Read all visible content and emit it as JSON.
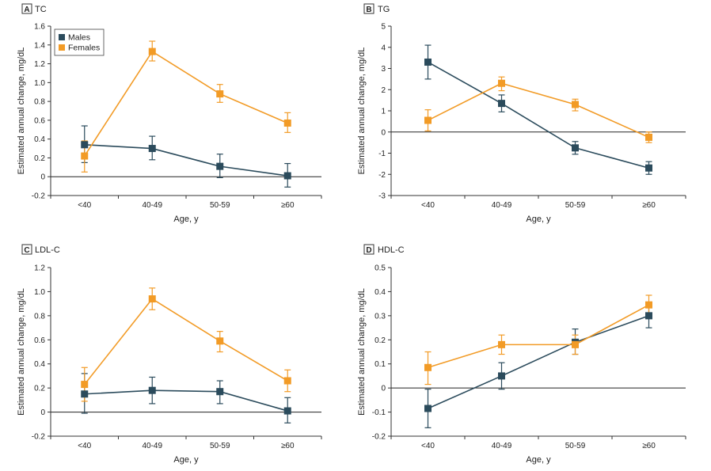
{
  "colors": {
    "males": "#2b4b5c",
    "females": "#f29b26",
    "axis": "#333333"
  },
  "legend": [
    {
      "name": "Males",
      "color": "#2b4b5c"
    },
    {
      "name": "Females",
      "color": "#f29b26"
    }
  ],
  "chart_data": [
    {
      "type": "line",
      "panel": "A",
      "title": "TC",
      "xlabel": "Age, y",
      "ylabel": "Estimated annual change, mg/dL",
      "categories": [
        "<40",
        "40-49",
        "50-59",
        "≥60"
      ],
      "ylim": [
        -0.2,
        1.6
      ],
      "yticks": [
        -0.2,
        0,
        0.2,
        0.4,
        0.6,
        0.8,
        1.0,
        1.2,
        1.4,
        1.6
      ],
      "ytick_labels": [
        "-0.2",
        "0",
        "0.2",
        "0.4",
        "0.6",
        "0.8",
        "1.0",
        "1.2",
        "1.4",
        "1.6"
      ],
      "legend": true,
      "series": [
        {
          "name": "Males",
          "values": [
            0.34,
            0.3,
            0.11,
            0.01
          ],
          "lower": [
            0.15,
            0.18,
            -0.01,
            -0.11
          ],
          "upper": [
            0.54,
            0.43,
            0.24,
            0.14
          ]
        },
        {
          "name": "Females",
          "values": [
            0.22,
            1.33,
            0.88,
            0.57
          ],
          "lower": [
            0.05,
            1.23,
            0.79,
            0.47
          ],
          "upper": [
            0.38,
            1.44,
            0.98,
            0.68
          ]
        }
      ]
    },
    {
      "type": "line",
      "panel": "B",
      "title": "TG",
      "xlabel": "Age, y",
      "ylabel": "Estimated annual change, mg/dL",
      "categories": [
        "<40",
        "40-49",
        "50-59",
        "≥60"
      ],
      "ylim": [
        -3,
        5
      ],
      "yticks": [
        -3,
        -2,
        -1,
        0,
        1,
        2,
        3,
        4,
        5
      ],
      "ytick_labels": [
        "-3",
        "-2",
        "-1",
        "0",
        "1",
        "2",
        "3",
        "4",
        "5"
      ],
      "legend": false,
      "series": [
        {
          "name": "Males",
          "values": [
            3.3,
            1.35,
            -0.75,
            -1.7
          ],
          "lower": [
            2.5,
            0.95,
            -1.05,
            -2.0
          ],
          "upper": [
            4.1,
            1.75,
            -0.45,
            -1.4
          ]
        },
        {
          "name": "Females",
          "values": [
            0.55,
            2.3,
            1.3,
            -0.25
          ],
          "lower": [
            0.05,
            1.95,
            1.0,
            -0.5
          ],
          "upper": [
            1.05,
            2.6,
            1.55,
            0.0
          ]
        }
      ]
    },
    {
      "type": "line",
      "panel": "C",
      "title": "LDL-C",
      "xlabel": "Age, y",
      "ylabel": "Estimated annual change, mg/dL",
      "categories": [
        "<40",
        "40-49",
        "50-59",
        "≥60"
      ],
      "ylim": [
        -0.2,
        1.2
      ],
      "yticks": [
        -0.2,
        0,
        0.2,
        0.4,
        0.6,
        0.8,
        1.0,
        1.2
      ],
      "ytick_labels": [
        "-0.2",
        "0",
        "0.2",
        "0.4",
        "0.6",
        "0.8",
        "1.0",
        "1.2"
      ],
      "legend": false,
      "series": [
        {
          "name": "Males",
          "values": [
            0.15,
            0.18,
            0.17,
            0.01
          ],
          "lower": [
            -0.01,
            0.07,
            0.07,
            -0.09
          ],
          "upper": [
            0.32,
            0.29,
            0.26,
            0.12
          ]
        },
        {
          "name": "Females",
          "values": [
            0.23,
            0.94,
            0.59,
            0.26
          ],
          "lower": [
            0.09,
            0.85,
            0.5,
            0.17
          ],
          "upper": [
            0.37,
            1.03,
            0.67,
            0.35
          ]
        }
      ]
    },
    {
      "type": "line",
      "panel": "D",
      "title": "HDL-C",
      "xlabel": "Age, y",
      "ylabel": "Estimated annual change, mg/dL",
      "categories": [
        "<40",
        "40-49",
        "50-59",
        "≥60"
      ],
      "ylim": [
        -0.2,
        0.5
      ],
      "yticks": [
        -0.2,
        -0.1,
        0,
        0.1,
        0.2,
        0.3,
        0.4,
        0.5
      ],
      "ytick_labels": [
        "-0.2",
        "-0.1",
        "0",
        "0.1",
        "0.2",
        "0.3",
        "0.4",
        "0.5"
      ],
      "legend": false,
      "series": [
        {
          "name": "Males",
          "values": [
            -0.085,
            0.05,
            0.19,
            0.3
          ],
          "lower": [
            -0.165,
            -0.005,
            0.14,
            0.25
          ],
          "upper": [
            -0.005,
            0.105,
            0.245,
            0.355
          ]
        },
        {
          "name": "Females",
          "values": [
            0.085,
            0.18,
            0.18,
            0.345
          ],
          "lower": [
            0.015,
            0.14,
            0.14,
            0.305
          ],
          "upper": [
            0.15,
            0.22,
            0.22,
            0.385
          ]
        }
      ]
    }
  ]
}
